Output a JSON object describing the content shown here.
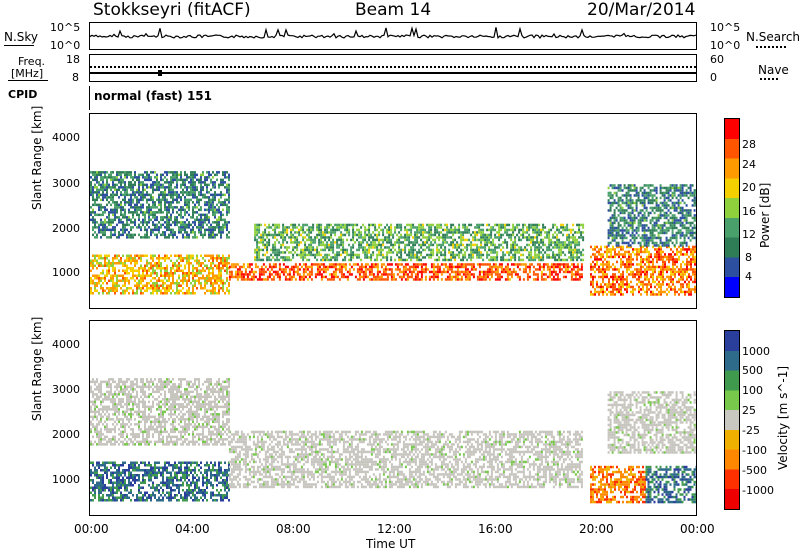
{
  "header": {
    "station": "Stokkseyri (fitACF)",
    "beam": "Beam 14",
    "date": "20/Mar/2014"
  },
  "nsky_panel": {
    "left_label": "N.Sky",
    "right_label": "N.Search",
    "ticks": [
      "10^5",
      "10^0"
    ],
    "right_ticks": [
      "10^5",
      "10^0"
    ]
  },
  "freq_panel": {
    "left_label_1": "Freq.",
    "left_label_2": "[MHz]",
    "right_label": "Nave",
    "ticks": [
      "18",
      "8"
    ],
    "right_ticks": [
      "60",
      "0"
    ]
  },
  "cpid_panel": {
    "label": "CPID",
    "value": "normal (fast) 151"
  },
  "colors": {
    "power": [
      "#0000ff",
      "#2c4fa0",
      "#2e7d57",
      "#4aa06a",
      "#8fd13c",
      "#f5d000",
      "#ff9a00",
      "#ff5500",
      "#ff0000"
    ],
    "velocity": [
      "#2a3f9c",
      "#2e6b8a",
      "#3f9a4e",
      "#77c84b",
      "#c8c8c0",
      "#f0b000",
      "#ff8800",
      "#ff3000",
      "#ee0000"
    ],
    "echo_grey": "#c6c4bd"
  },
  "chart_data": [
    {
      "type": "heatmap",
      "title": "",
      "xlabel": "Time UT",
      "ylabel": "Slant Range [km]",
      "xlim": [
        "00:00",
        "24:00"
      ],
      "ylim": [
        180,
        4600
      ],
      "x_ticks": [
        "00:00",
        "04:00",
        "08:00",
        "12:00",
        "16:00",
        "20:00",
        "00:00"
      ],
      "y_ticks": [
        "1000",
        "2000",
        "3000",
        "4000"
      ],
      "colorbar": {
        "label": "Power [dB]",
        "ticks": [
          "4",
          "8",
          "12",
          "16",
          "20",
          "24",
          "28"
        ],
        "range": [
          0,
          30
        ]
      },
      "echo_bands": [
        {
          "name": "",
          "t_start": 0.0,
          "t_end": 5.5,
          "range_km": [
            500,
            1400
          ],
          "value": 20
        },
        {
          "name": "",
          "t_start": 5.5,
          "t_end": 19.5,
          "range_km": [
            850,
            1200
          ],
          "value": 26
        },
        {
          "name": "",
          "t_start": 6.5,
          "t_end": 19.5,
          "range_km": [
            1300,
            2100
          ],
          "value": 12
        },
        {
          "name": "",
          "t_start": 0.0,
          "t_end": 5.5,
          "range_km": [
            1800,
            3300
          ],
          "value": 8
        },
        {
          "name": "",
          "t_start": 19.8,
          "t_end": 24.0,
          "range_km": [
            500,
            1600
          ],
          "value": 24
        },
        {
          "name": "",
          "t_start": 20.5,
          "t_end": 24.0,
          "range_km": [
            1600,
            3000
          ],
          "value": 8
        }
      ]
    },
    {
      "type": "heatmap",
      "title": "",
      "xlabel": "Time UT",
      "ylabel": "Slant Range [km]",
      "xlim": [
        "00:00",
        "24:00"
      ],
      "ylim": [
        180,
        4600
      ],
      "x_ticks": [
        "00:00",
        "04:00",
        "08:00",
        "12:00",
        "16:00",
        "20:00",
        "00:00"
      ],
      "y_ticks": [
        "1000",
        "2000",
        "3000",
        "4000"
      ],
      "colorbar": {
        "label": "Velocity [m s^-1]",
        "ticks": [
          "1000",
          "500",
          "100",
          "25",
          "-25",
          "-100",
          "-500",
          "-1000"
        ],
        "range": [
          -1200,
          1200
        ]
      },
      "echo_bands": [
        {
          "name": "",
          "t_start": 0.0,
          "t_end": 5.5,
          "range_km": [
            500,
            1400
          ],
          "value": 500
        },
        {
          "name": "",
          "t_start": 5.5,
          "t_end": 19.5,
          "range_km": [
            800,
            2100
          ],
          "value": 0
        },
        {
          "name": "",
          "t_start": 0.0,
          "t_end": 5.5,
          "range_km": [
            1800,
            3300
          ],
          "value": 0
        },
        {
          "name": "",
          "t_start": 19.8,
          "t_end": 22.0,
          "range_km": [
            500,
            1300
          ],
          "value": -500
        },
        {
          "name": "",
          "t_start": 22.0,
          "t_end": 24.0,
          "range_km": [
            500,
            1300
          ],
          "value": 500
        },
        {
          "name": "",
          "t_start": 20.5,
          "t_end": 24.0,
          "range_km": [
            1600,
            3000
          ],
          "value": 0
        }
      ]
    }
  ],
  "time_axis_label": "Time UT"
}
